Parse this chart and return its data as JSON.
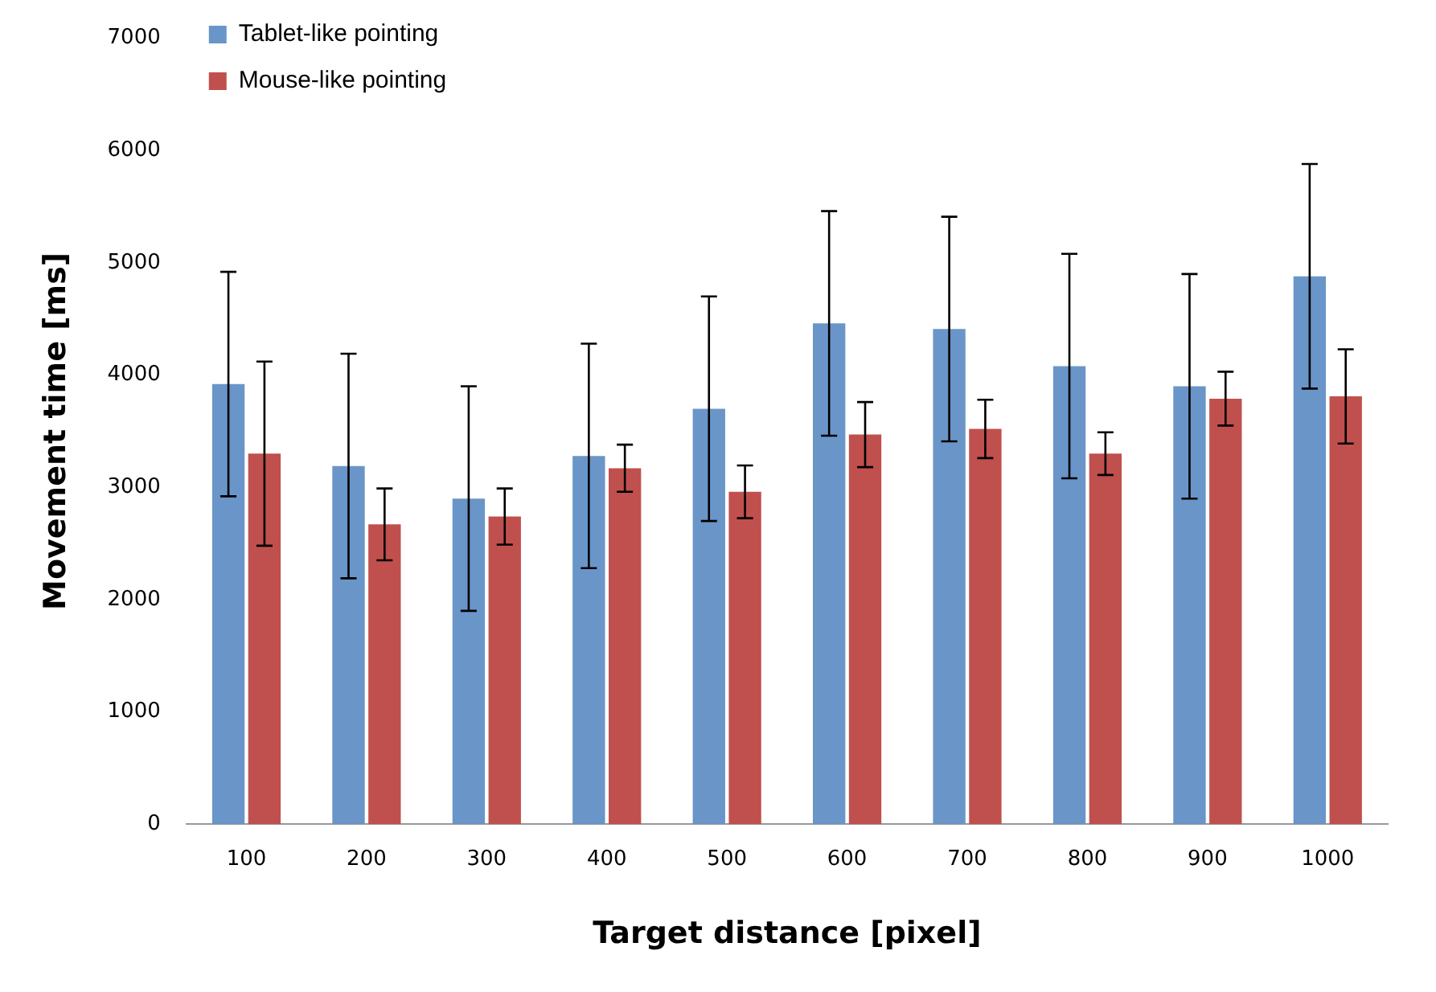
{
  "chart_data": {
    "type": "bar",
    "xlabel": "Target distance [pixel]",
    "ylabel": "Movement time [ms]",
    "categories": [
      "100",
      "200",
      "300",
      "400",
      "500",
      "600",
      "700",
      "800",
      "900",
      "1000"
    ],
    "series": [
      {
        "name": "Tablet-like pointing",
        "color": "#6a95c8",
        "values": [
          3920,
          3190,
          2900,
          3280,
          3700,
          4460,
          4410,
          4080,
          3900,
          4880
        ],
        "errors": [
          1000,
          1000,
          1000,
          1000,
          1000,
          1000,
          1000,
          1000,
          1000,
          1000
        ]
      },
      {
        "name": "Mouse-like pointing",
        "color": "#c0504d",
        "values": [
          3300,
          2670,
          2740,
          3170,
          2960,
          3470,
          3520,
          3300,
          3790,
          3810
        ],
        "errors": [
          820,
          320,
          250,
          210,
          235,
          290,
          260,
          190,
          240,
          420
        ]
      }
    ],
    "ylim": [
      0,
      7000
    ],
    "yticks": [
      0,
      1000,
      2000,
      3000,
      4000,
      5000,
      6000,
      7000
    ],
    "grid": false,
    "legend": "top left"
  }
}
